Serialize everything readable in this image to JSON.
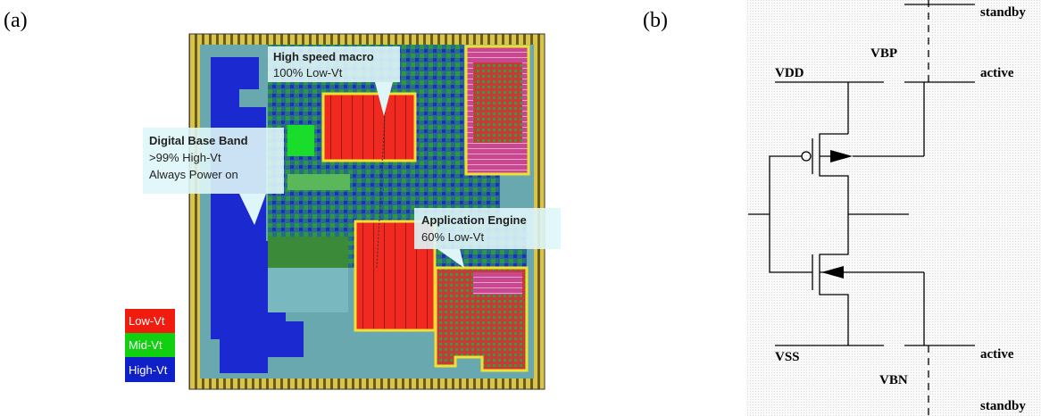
{
  "panel_a": {
    "label": "(a)",
    "callouts": [
      {
        "title": "High speed macro",
        "lines": [
          "100% Low-Vt"
        ]
      },
      {
        "title": "Digital Base Band",
        "lines": [
          ">99% High-Vt",
          "Always Power on"
        ]
      },
      {
        "title": "Application Engine",
        "lines": [
          "60% Low-Vt"
        ]
      }
    ],
    "legend": [
      "Low-Vt",
      "Mid-Vt",
      "High-Vt"
    ]
  },
  "panel_b": {
    "label": "(b)",
    "labels": {
      "standby_top": "standby",
      "vbp": "VBP",
      "vdd": "VDD",
      "active_top": "active",
      "vss": "VSS",
      "active_bottom": "active",
      "vbn": "VBN",
      "standby_bottom": "standby"
    }
  }
}
